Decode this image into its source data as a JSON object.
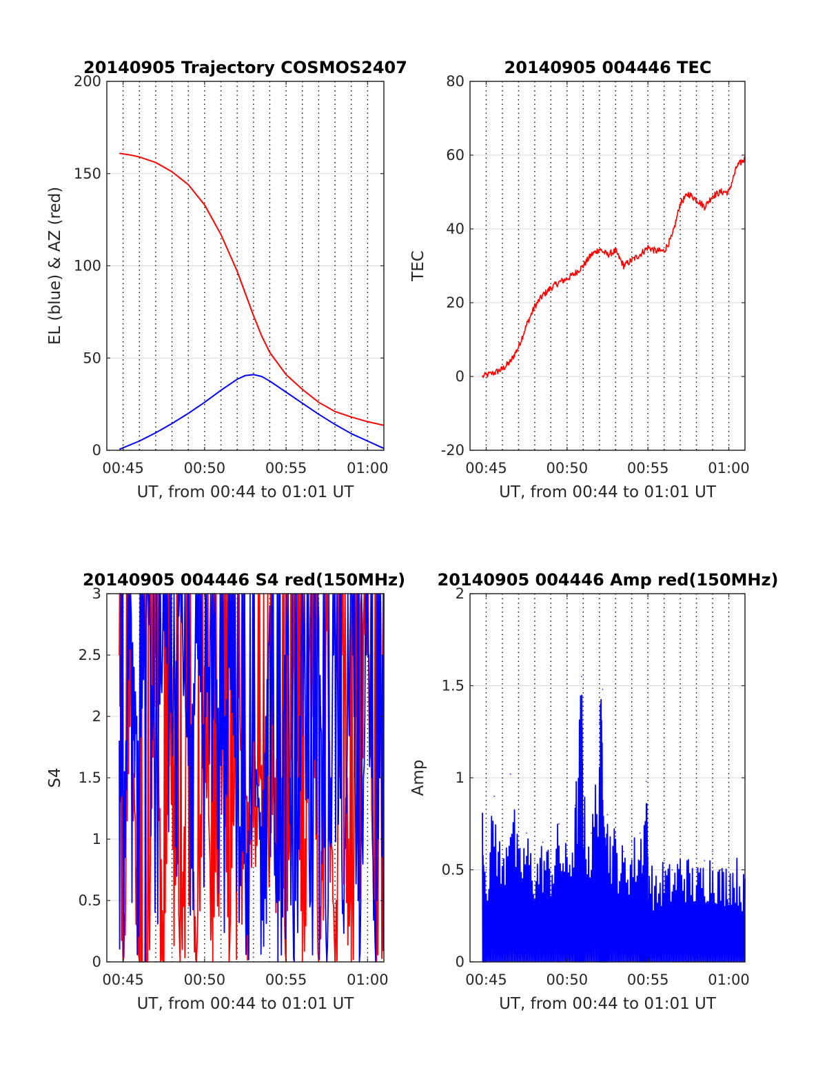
{
  "figure": {
    "background": "#ffffff",
    "axis_color": "#262626",
    "grid_color": "#d9d9d9",
    "vgrid_color": "#000000",
    "red": "#ff0000",
    "blue": "#0000ff"
  },
  "chart_data": [
    {
      "id": "trajectory",
      "type": "line",
      "title": "20140905 Trajectory COSMOS2407",
      "xlabel": "UT, from 00:44 to 01:01 UT",
      "ylabel": "EL (blue) & AZ (red)",
      "xlim": [
        "00:44",
        "01:01"
      ],
      "ylim": [
        0,
        200
      ],
      "yticks": [
        0,
        50,
        100,
        150,
        200
      ],
      "xticks": [
        "00:45",
        "00:50",
        "00:55",
        "01:00"
      ],
      "minor_vgrid_minutes": [
        "00:45",
        "00:46",
        "00:47",
        "00:48",
        "00:49",
        "00:50",
        "00:51",
        "00:52",
        "00:53",
        "00:54",
        "00:55",
        "00:56",
        "00:57",
        "00:58",
        "00:59",
        "01:00"
      ],
      "series": [
        {
          "color": "red",
          "x": [
            "00:44:46",
            "00:45:30",
            "00:46:00",
            "00:47:00",
            "00:48:00",
            "00:49:00",
            "00:50:00",
            "00:51:00",
            "00:52:00",
            "00:52:30",
            "00:53:00",
            "00:53:30",
            "00:54:00",
            "00:55:00",
            "00:56:00",
            "00:57:00",
            "00:58:00",
            "00:59:00",
            "01:00:00",
            "01:01:00"
          ],
          "y": [
            161,
            160,
            159,
            156,
            151,
            144,
            133,
            117,
            97,
            85,
            73,
            62,
            53,
            41,
            33,
            26,
            21,
            18,
            15.5,
            13.5
          ]
        },
        {
          "color": "blue",
          "x": [
            "00:44:46",
            "00:46:00",
            "00:47:00",
            "00:48:00",
            "00:49:00",
            "00:50:00",
            "00:51:00",
            "00:52:00",
            "00:52:30",
            "00:53:00",
            "00:53:30",
            "00:54:00",
            "00:55:00",
            "00:56:00",
            "00:57:00",
            "00:58:00",
            "00:59:00",
            "01:00:00",
            "01:01:00"
          ],
          "y": [
            0.5,
            5,
            9.5,
            14.5,
            20,
            26,
            32.5,
            38.5,
            40.5,
            41,
            40,
            37.5,
            31.5,
            25.5,
            19.5,
            14,
            9,
            5,
            1
          ]
        }
      ]
    },
    {
      "id": "tec",
      "type": "line",
      "title": "20140905 004446 TEC",
      "xlabel": "UT, from 00:44 to 01:01 UT",
      "ylabel": "TEC",
      "xlim": [
        "00:44",
        "01:01"
      ],
      "ylim": [
        -20,
        80
      ],
      "yticks": [
        -20,
        0,
        20,
        40,
        60,
        80
      ],
      "xticks": [
        "00:45",
        "00:50",
        "00:55",
        "01:00"
      ],
      "minor_vgrid_minutes": [
        "00:45",
        "00:46",
        "00:47",
        "00:48",
        "00:49",
        "00:50",
        "00:51",
        "00:52",
        "00:53",
        "00:54",
        "00:55",
        "00:56",
        "00:57",
        "00:58",
        "00:59",
        "01:00"
      ],
      "series": [
        {
          "color": "red",
          "x": [
            "00:44:46",
            "00:45:30",
            "00:46:00",
            "00:46:30",
            "00:47:00",
            "00:47:30",
            "00:48:00",
            "00:48:30",
            "00:49:00",
            "00:49:30",
            "00:50:00",
            "00:50:30",
            "00:51:00",
            "00:51:30",
            "00:52:00",
            "00:52:30",
            "00:53:00",
            "00:53:30",
            "00:54:00",
            "00:54:30",
            "00:55:00",
            "00:55:30",
            "00:56:00",
            "00:56:30",
            "00:57:00",
            "00:57:30",
            "00:58:00",
            "00:58:30",
            "00:59:00",
            "00:59:30",
            "01:00:00",
            "01:00:30",
            "01:01:00"
          ],
          "y": [
            0,
            1,
            2,
            4,
            8,
            14,
            19,
            22,
            24,
            25.5,
            26.5,
            28,
            30,
            33,
            34.5,
            33,
            34,
            30,
            31.5,
            33,
            35,
            34,
            34,
            38,
            47,
            49.5,
            48,
            46,
            49,
            50,
            50,
            57,
            59
          ]
        }
      ]
    },
    {
      "id": "s4",
      "type": "line",
      "title": "20140905 004446 S4 red(150MHz)",
      "xlabel": "UT, from 00:44 to 01:01 UT",
      "ylabel": "S4",
      "xlim": [
        "00:44",
        "01:01"
      ],
      "ylim": [
        0,
        3
      ],
      "yticks": [
        0,
        0.5,
        1,
        1.5,
        2,
        2.5,
        3
      ],
      "xticks": [
        "00:45",
        "00:50",
        "00:55",
        "01:00"
      ],
      "minor_vgrid_minutes": [
        "00:45",
        "00:46",
        "00:47",
        "00:48",
        "00:49",
        "00:50",
        "00:51",
        "00:52",
        "00:53",
        "00:54",
        "00:55",
        "00:56",
        "00:57",
        "00:58",
        "00:59",
        "01:00"
      ],
      "series": [
        {
          "color": "red",
          "x": [
            "00:44:46",
            "00:45:00",
            "00:45:30",
            "00:46:00",
            "00:46:30",
            "00:47:00",
            "00:47:30",
            "00:48:00",
            "00:48:30",
            "00:49:00",
            "00:49:30",
            "00:50:00",
            "00:50:30",
            "00:51:00",
            "00:51:30",
            "00:52:00",
            "00:52:30",
            "00:53:00",
            "00:53:30",
            "00:54:00",
            "00:54:30",
            "00:55:00",
            "00:55:30",
            "00:56:00",
            "00:56:30",
            "00:57:00",
            "00:57:30",
            "00:58:00",
            "00:58:30",
            "00:59:00",
            "00:59:30",
            "01:00:00",
            "01:00:30",
            "01:01:00"
          ],
          "y": [
            2.5,
            0,
            2.3,
            0,
            0,
            2.5,
            0,
            2.4,
            0,
            2.2,
            0,
            2.4,
            0,
            2.2,
            0,
            2.3,
            1.4,
            1.1,
            1.6,
            0.9,
            1.8,
            0,
            2.5,
            0,
            3,
            0,
            2.7,
            0,
            3,
            0,
            3,
            2.5,
            0,
            3
          ]
        },
        {
          "color": "blue",
          "x": [
            "00:44:46",
            "00:45:00",
            "00:45:30",
            "00:46:00",
            "00:46:30",
            "00:47:00",
            "00:47:30",
            "00:48:00",
            "00:48:30",
            "00:49:00",
            "00:49:30",
            "00:50:00",
            "00:50:30",
            "00:51:00",
            "00:51:30",
            "00:52:00",
            "00:52:30",
            "00:53:00",
            "00:53:30",
            "00:54:00",
            "00:54:30",
            "00:55:00",
            "00:55:30",
            "00:56:00",
            "00:56:30",
            "00:57:00",
            "00:57:30",
            "00:58:00",
            "00:58:30",
            "00:59:00",
            "00:59:30",
            "01:00:00",
            "01:00:30",
            "01:01:00"
          ],
          "y": [
            1.8,
            1.3,
            2.8,
            1.6,
            3,
            1.5,
            2.7,
            1.9,
            3,
            1.6,
            2.6,
            1.8,
            3,
            1.6,
            2.4,
            1.3,
            0.7,
            1.8,
            1.1,
            2.9,
            0,
            3,
            0,
            3,
            0.5,
            2.8,
            0,
            3,
            0.5,
            3,
            0,
            3,
            0,
            3
          ]
        }
      ]
    },
    {
      "id": "amp",
      "type": "line",
      "title": "20140905 004446 Amp red(150MHz)",
      "xlabel": "UT, from 00:44 to 01:01 UT",
      "ylabel": "Amp",
      "xlim": [
        "00:44",
        "01:01"
      ],
      "ylim": [
        0,
        2
      ],
      "yticks": [
        0,
        0.5,
        1,
        1.5,
        2
      ],
      "xticks": [
        "00:45",
        "00:50",
        "00:55",
        "01:00"
      ],
      "minor_vgrid_minutes": [
        "00:45",
        "00:46",
        "00:47",
        "00:48",
        "00:49",
        "00:50",
        "00:51",
        "00:52",
        "00:53",
        "00:54",
        "00:55",
        "00:56",
        "00:57",
        "00:58",
        "00:59",
        "01:00"
      ],
      "series": [
        {
          "color": "blue",
          "x": [
            "00:44:46",
            "00:45:00",
            "00:45:30",
            "00:46:00",
            "00:46:30",
            "00:47:00",
            "00:47:30",
            "00:48:00",
            "00:48:30",
            "00:49:00",
            "00:49:30",
            "00:50:00",
            "00:50:30",
            "00:50:54",
            "00:51:00",
            "00:51:30",
            "00:52:00",
            "00:52:12",
            "00:52:30",
            "00:53:00",
            "00:53:30",
            "00:54:00",
            "00:54:30",
            "00:54:54",
            "00:55:00",
            "00:55:30",
            "00:56:00",
            "00:56:30",
            "00:57:00",
            "00:57:30",
            "00:58:00",
            "00:58:30",
            "00:59:00",
            "00:59:30",
            "01:00:00",
            "01:00:30",
            "01:01:00"
          ],
          "y": [
            0.8,
            0.5,
            0.9,
            0.55,
            1.02,
            0.6,
            0.7,
            0.55,
            0.65,
            0.6,
            0.75,
            0.6,
            0.85,
            1.55,
            0.9,
            0.7,
            1.3,
            1.48,
            0.8,
            0.7,
            0.6,
            0.65,
            0.7,
            0.98,
            0.6,
            0.45,
            0.55,
            0.5,
            0.6,
            0.55,
            0.5,
            0.55,
            0.6,
            0.5,
            0.55,
            0.55,
            0.45
          ]
        }
      ]
    }
  ]
}
